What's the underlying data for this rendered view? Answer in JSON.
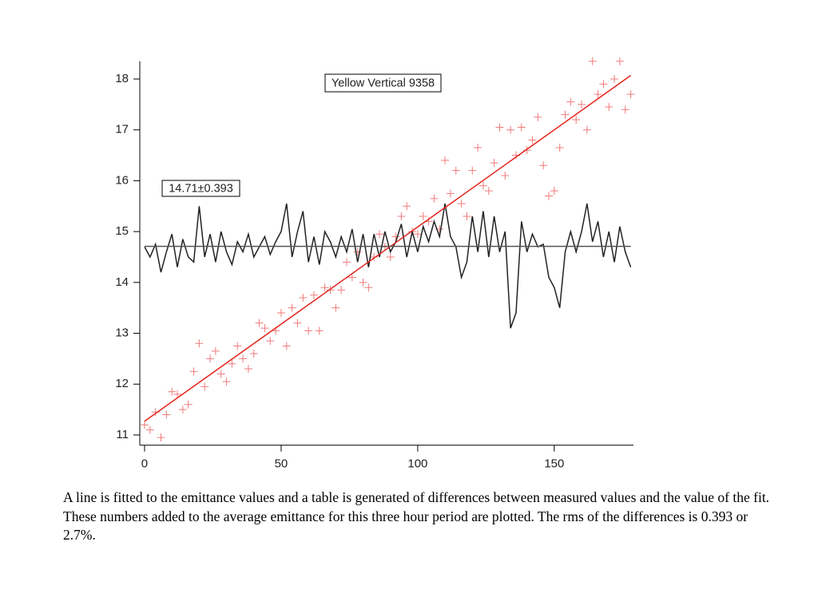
{
  "chart_data": {
    "type": "scatter",
    "annotations": [
      "Yellow Vertical 9358",
      "14.71±0.393"
    ],
    "xlim": [
      -1.75,
      179
    ],
    "ylim": [
      10.8,
      18.35
    ],
    "xticks": [
      0,
      50,
      100,
      150
    ],
    "yticks": [
      11,
      12,
      13,
      14,
      15,
      16,
      17,
      18
    ],
    "x": [
      0,
      2,
      4,
      6,
      8,
      10,
      12,
      14,
      16,
      18,
      20,
      22,
      24,
      26,
      28,
      30,
      32,
      34,
      36,
      38,
      40,
      42,
      44,
      46,
      48,
      50,
      52,
      54,
      56,
      58,
      60,
      62,
      64,
      66,
      68,
      70,
      72,
      74,
      76,
      78,
      80,
      82,
      84,
      86,
      88,
      90,
      92,
      94,
      96,
      98,
      100,
      102,
      104,
      106,
      108,
      110,
      112,
      114,
      116,
      118,
      120,
      122,
      124,
      126,
      128,
      130,
      132,
      134,
      136,
      138,
      140,
      142,
      144,
      146,
      148,
      150,
      152,
      154,
      156,
      158,
      160,
      162,
      164,
      166,
      168,
      170,
      172,
      174,
      176,
      178
    ],
    "series": [
      {
        "type": "scatter",
        "color": "#f07a7a",
        "values": [
          11.2,
          11.1,
          11.45,
          10.95,
          11.4,
          11.85,
          11.8,
          11.5,
          11.6,
          12.25,
          12.8,
          11.95,
          12.5,
          12.65,
          12.2,
          12.05,
          12.4,
          12.75,
          12.5,
          12.3,
          12.6,
          13.2,
          13.1,
          12.85,
          13.05,
          13.4,
          12.75,
          13.5,
          13.2,
          13.7,
          13.05,
          13.75,
          13.05,
          13.9,
          13.85,
          13.5,
          13.85,
          14.4,
          14.1,
          14.6,
          14.0,
          13.9,
          14.5,
          14.95,
          14.7,
          14.5,
          14.9,
          15.3,
          15.5,
          15.0,
          14.95,
          15.3,
          15.2,
          15.65,
          15.05,
          16.4,
          15.75,
          16.2,
          15.55,
          15.3,
          16.2,
          16.65,
          15.9,
          15.8,
          16.35,
          17.05,
          16.1,
          17.0,
          16.5,
          17.05,
          16.6,
          16.8,
          17.25,
          16.3,
          15.7,
          15.8,
          16.65,
          17.3,
          17.55,
          17.2,
          17.5,
          17.0,
          18.35,
          17.7,
          17.9,
          17.45,
          18.0,
          18.35,
          17.4,
          17.7
        ]
      },
      {
        "type": "line",
        "color": "#222222",
        "values": [
          14.7,
          14.5,
          14.75,
          14.2,
          14.6,
          14.95,
          14.3,
          14.85,
          14.5,
          14.4,
          15.5,
          14.5,
          14.95,
          14.4,
          15.0,
          14.6,
          14.35,
          14.8,
          14.6,
          14.95,
          14.5,
          14.7,
          14.9,
          14.55,
          14.8,
          15.0,
          15.55,
          14.5,
          15.0,
          15.4,
          14.4,
          14.9,
          14.35,
          15.0,
          14.8,
          14.5,
          14.9,
          14.6,
          15.05,
          14.4,
          14.95,
          14.3,
          14.95,
          14.5,
          15.0,
          14.6,
          14.8,
          15.15,
          14.5,
          15.0,
          14.6,
          15.1,
          14.8,
          15.2,
          14.9,
          15.55,
          14.9,
          14.7,
          14.1,
          14.4,
          15.3,
          14.6,
          15.4,
          14.5,
          15.3,
          14.6,
          15.0,
          13.1,
          13.4,
          15.2,
          14.6,
          14.95,
          14.7,
          14.75,
          14.1,
          13.9,
          13.5,
          14.6,
          15.0,
          14.6,
          15.0,
          15.55,
          14.8,
          15.2,
          14.5,
          15.0,
          14.4,
          15.1,
          14.6,
          14.3
        ]
      },
      {
        "type": "line",
        "color": "#e3231c",
        "x": [
          0,
          178
        ],
        "values": [
          11.27,
          18.07
        ]
      },
      {
        "type": "line",
        "color": "#555555",
        "x": [
          0,
          178
        ],
        "values": [
          14.71,
          14.71
        ]
      }
    ]
  },
  "caption": "A line is fitted to the emittance values and a table is generated of differences between measured values and the value of the fit.  These numbers added to the average emittance for this three hour period are plotted.  The rms of the differences is 0.393 or 2.7%."
}
